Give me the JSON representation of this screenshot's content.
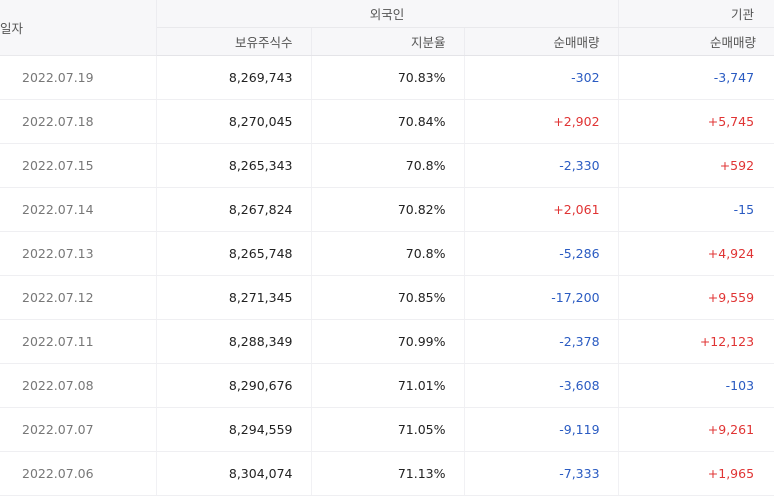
{
  "header": {
    "date": "일자",
    "foreign": "외국인",
    "institution": "기관",
    "holdings": "보유주식수",
    "ratio": "지분율",
    "foreign_net": "순매매량",
    "institution_net": "순매매량"
  },
  "rows": [
    {
      "date": "2022.07.19",
      "holdings": "8,269,743",
      "ratio": "70.83%",
      "foreign_net": "-302",
      "institution_net": "-3,747"
    },
    {
      "date": "2022.07.18",
      "holdings": "8,270,045",
      "ratio": "70.84%",
      "foreign_net": "+2,902",
      "institution_net": "+5,745"
    },
    {
      "date": "2022.07.15",
      "holdings": "8,265,343",
      "ratio": "70.8%",
      "foreign_net": "-2,330",
      "institution_net": "+592"
    },
    {
      "date": "2022.07.14",
      "holdings": "8,267,824",
      "ratio": "70.82%",
      "foreign_net": "+2,061",
      "institution_net": "-15"
    },
    {
      "date": "2022.07.13",
      "holdings": "8,265,748",
      "ratio": "70.8%",
      "foreign_net": "-5,286",
      "institution_net": "+4,924"
    },
    {
      "date": "2022.07.12",
      "holdings": "8,271,345",
      "ratio": "70.85%",
      "foreign_net": "-17,200",
      "institution_net": "+9,559"
    },
    {
      "date": "2022.07.11",
      "holdings": "8,288,349",
      "ratio": "70.99%",
      "foreign_net": "-2,378",
      "institution_net": "+12,123"
    },
    {
      "date": "2022.07.08",
      "holdings": "8,290,676",
      "ratio": "71.01%",
      "foreign_net": "-3,608",
      "institution_net": "-103"
    },
    {
      "date": "2022.07.07",
      "holdings": "8,294,559",
      "ratio": "71.05%",
      "foreign_net": "-9,119",
      "institution_net": "+9,261"
    },
    {
      "date": "2022.07.06",
      "holdings": "8,304,074",
      "ratio": "71.13%",
      "foreign_net": "-7,333",
      "institution_net": "+1,965"
    }
  ],
  "colors": {
    "positive": "#e03434",
    "negative": "#2a5bc2"
  }
}
